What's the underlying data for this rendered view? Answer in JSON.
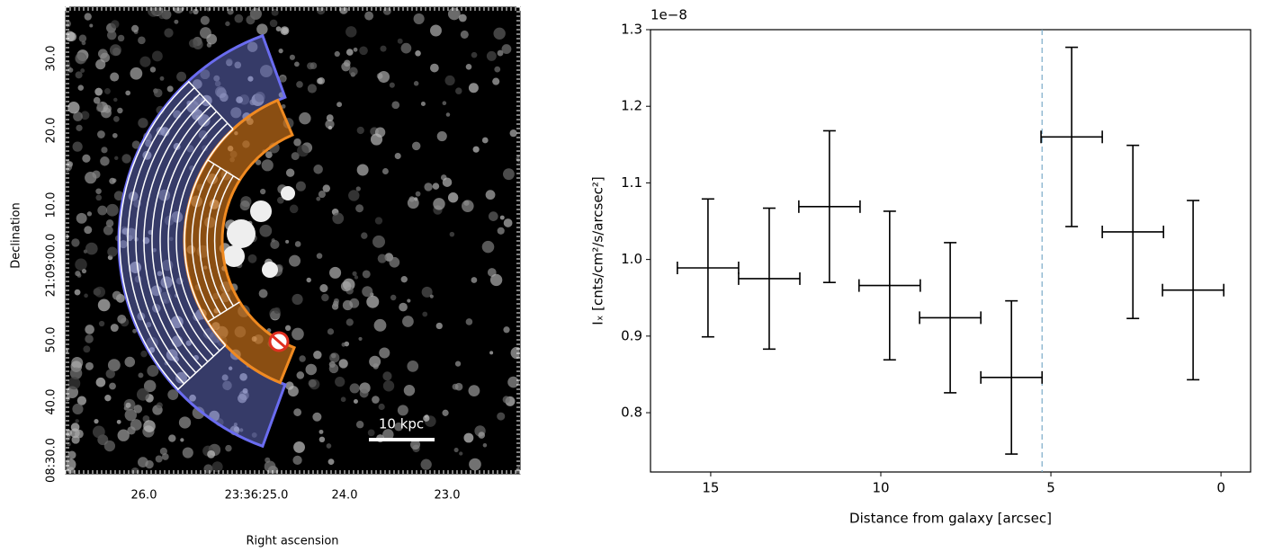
{
  "chart_data": [
    {
      "type": "image",
      "xlabel": "Right ascension",
      "ylabel": "Declination",
      "xtick_labels": [
        "26.0",
        "23:36:25.0",
        "24.0",
        "23.0"
      ],
      "ytick_labels": [
        "30.0",
        "20.0",
        "10.0",
        "21:09:00.0",
        "50.0",
        "40.0",
        "08:30.0"
      ],
      "annotation": "10 kpc"
    },
    {
      "type": "errorbar",
      "xlabel": "Distance from galaxy [arcsec]",
      "ylabel": "Iₓ [cnts/cm²/s/arcsec²]",
      "offset_label": "1e−8",
      "x": [
        15.08,
        13.28,
        11.51,
        9.74,
        7.96,
        6.16,
        4.39,
        2.59,
        0.82
      ],
      "xerr": [
        0.9,
        0.9,
        0.9,
        0.9,
        0.9,
        0.9,
        0.9,
        0.9,
        0.9
      ],
      "values": [
        0.989,
        0.975,
        1.069,
        0.966,
        0.924,
        0.846,
        1.16,
        1.036,
        0.96
      ],
      "yerr": [
        0.09,
        0.092,
        0.099,
        0.097,
        0.098,
        0.1,
        0.117,
        0.113,
        0.117
      ],
      "color": "#000000",
      "vline": {
        "x": 5.26,
        "color": "#7aaac8"
      },
      "xlim": [
        16.77,
        -0.87
      ],
      "ylim": [
        0.7226,
        1.3
      ],
      "xticks": [
        15,
        10,
        5,
        0
      ],
      "yticks": [
        0.8,
        0.9,
        {
          "value": 1,
          "label": "1.0"
        },
        1.1,
        1.2,
        1.3
      ]
    }
  ]
}
